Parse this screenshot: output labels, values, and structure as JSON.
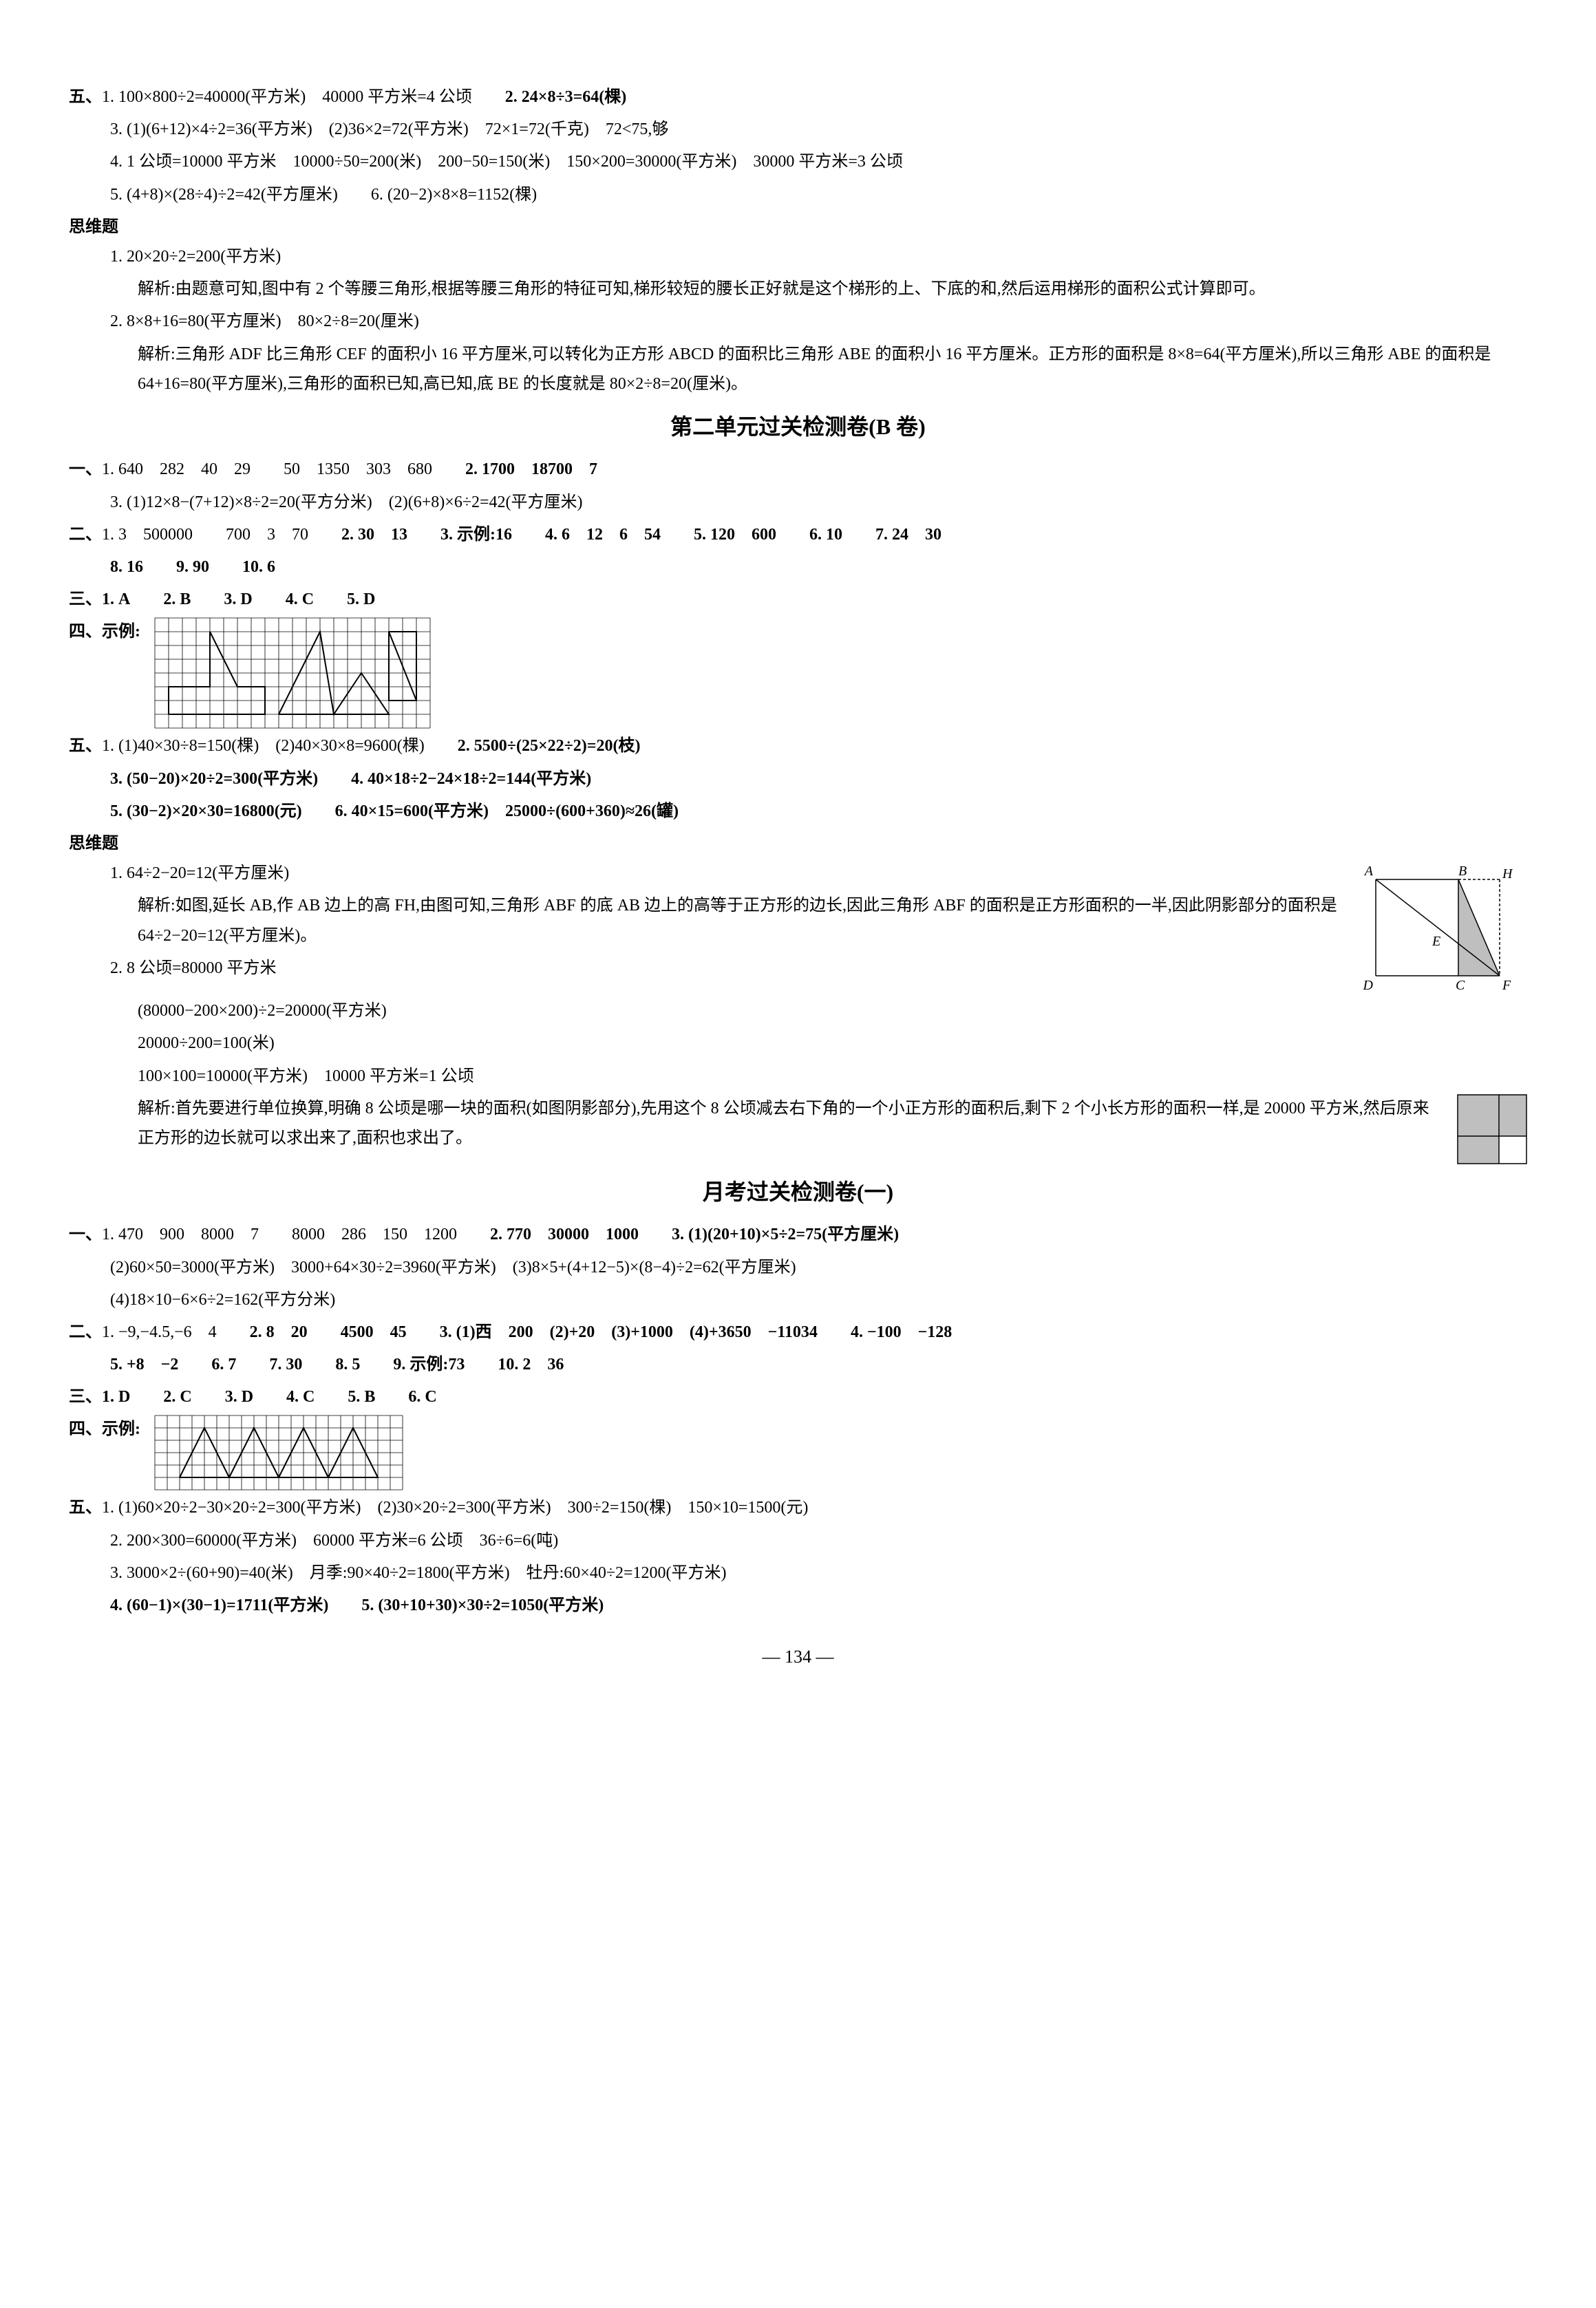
{
  "sectionA": {
    "label": "五、",
    "item1": "1. 100×800÷2=40000(平方米)　40000 平方米=4 公顷",
    "item2": "2. 24×8÷3=64(棵)",
    "item3": "3. (1)(6+12)×4÷2=36(平方米)　(2)36×2=72(平方米)　72×1=72(千克)　72<75,够",
    "item4": "4. 1 公顷=10000 平方米　10000÷50=200(米)　200−50=150(米)　150×200=30000(平方米)　30000 平方米=3 公顷",
    "item5": "5. (4+8)×(28÷4)÷2=42(平方厘米)",
    "item6": "6. (20−2)×8×8=1152(棵)"
  },
  "thinkA": {
    "label": "思维题",
    "t1": "1. 20×20÷2=200(平方米)",
    "t1_exp": "解析:由题意可知,图中有 2 个等腰三角形,根据等腰三角形的特征可知,梯形较短的腰长正好就是这个梯形的上、下底的和,然后运用梯形的面积公式计算即可。",
    "t2": "2. 8×8+16=80(平方厘米)　80×2÷8=20(厘米)",
    "t2_exp": "解析:三角形 ADF 比三角形 CEF 的面积小 16 平方厘米,可以转化为正方形 ABCD 的面积比三角形 ABE 的面积小 16 平方厘米。正方形的面积是 8×8=64(平方厘米),所以三角形 ABE 的面积是 64+16=80(平方厘米),三角形的面积已知,高已知,底 BE 的长度就是 80×2÷8=20(厘米)。"
  },
  "unit2": {
    "title": "第二单元过关检测卷(B 卷)",
    "s1": {
      "label": "一、",
      "l1a": "1. 640　282　40　29　　50　1350　303　680",
      "l1b": "2. 1700　18700　7",
      "l3": "3. (1)12×8−(7+12)×8÷2=20(平方分米)　(2)(6+8)×6÷2=42(平方厘米)"
    },
    "s2": {
      "label": "二、",
      "r1_1": "1. 3　500000　　700　3　70",
      "r1_2": "2. 30　13",
      "r1_3": "3. 示例:16",
      "r1_4": "4. 6　12　6　54",
      "r1_5": "5. 120　600",
      "r1_6": "6. 10",
      "r1_7": "7. 24　30",
      "r2_8": "8. 16",
      "r2_9": "9. 90",
      "r2_10": "10. 6"
    },
    "s3": {
      "label": "三、",
      "q1": "1. A",
      "q2": "2. B",
      "q3": "3. D",
      "q4": "4. C",
      "q5": "5. D"
    },
    "s4": {
      "label": "四、示例:"
    },
    "s5": {
      "label": "五、",
      "l1a": "1. (1)40×30÷8=150(棵)　(2)40×30×8=9600(棵)",
      "l1b": "2. 5500÷(25×22÷2)=20(枝)",
      "l3": "3. (50−20)×20÷2=300(平方米)",
      "l4": "4. 40×18÷2−24×18÷2=144(平方米)",
      "l5": "5. (30−2)×20×30=16800(元)",
      "l6": "6. 40×15=600(平方米)　25000÷(600+360)≈26(罐)"
    },
    "think": {
      "label": "思维题",
      "t1": "1. 64÷2−20=12(平方厘米)",
      "t1_exp": "解析:如图,延长 AB,作 AB 边上的高 FH,由图可知,三角形 ABF 的底 AB 边上的高等于正方形的边长,因此三角形 ABF 的面积是正方形面积的一半,因此阴影部分的面积是 64÷2−20=12(平方厘米)。",
      "t2": "2. 8 公顷=80000 平方米",
      "t2_l1": "(80000−200×200)÷2=20000(平方米)",
      "t2_l2": "20000÷200=100(米)",
      "t2_l3": "100×100=10000(平方米)　10000 平方米=1 公顷",
      "t2_exp": "解析:首先要进行单位换算,明确 8 公顷是哪一块的面积(如图阴影部分),先用这个 8 公顷减去右下角的一个小正方形的面积后,剩下 2 个小长方形的面积一样,是 20000 平方米,然后原来正方形的边长就可以求出来了,面积也求出了。"
    },
    "diagram": {
      "labels": {
        "A": "A",
        "B": "B",
        "H": "H",
        "D": "D",
        "C": "C",
        "F": "F",
        "E": "E"
      }
    }
  },
  "monthly": {
    "title": "月考过关检测卷(一)",
    "s1": {
      "label": "一、",
      "l1a": "1. 470　900　8000　7　　8000　286　150　1200",
      "l1b": "2. 770　30000　1000",
      "l1c": "3. (1)(20+10)×5÷2=75(平方厘米)",
      "l2": "(2)60×50=3000(平方米)　3000+64×30÷2=3960(平方米)　(3)8×5+(4+12−5)×(8−4)÷2=62(平方厘米)",
      "l3": "(4)18×10−6×6÷2=162(平方分米)"
    },
    "s2": {
      "label": "二、",
      "r1_1": "1. −9,−4.5,−6　4",
      "r1_2": "2. 8　20　　4500　45",
      "r1_3": "3. (1)西　200　(2)+20　(3)+1000　(4)+3650　−11034",
      "r1_4": "4. −100　−128",
      "r2_5": "5. +8　−2",
      "r2_6": "6. 7",
      "r2_7": "7. 30",
      "r2_8": "8. 5",
      "r2_9": "9. 示例:73",
      "r2_10": "10. 2　36"
    },
    "s3": {
      "label": "三、",
      "q1": "1. D",
      "q2": "2. C",
      "q3": "3. D",
      "q4": "4. C",
      "q5": "5. B",
      "q6": "6. C"
    },
    "s4": {
      "label": "四、示例:"
    },
    "s5": {
      "label": "五、",
      "l1": "1. (1)60×20÷2−30×20÷2=300(平方米)　(2)30×20÷2=300(平方米)　300÷2=150(棵)　150×10=1500(元)",
      "l2": "2. 200×300=60000(平方米)　60000 平方米=6 公顷　36÷6=6(吨)",
      "l3": "3. 3000×2÷(60+90)=40(米)　月季:90×40÷2=1800(平方米)　牡丹:60×40÷2=1200(平方米)",
      "l4": "4. (60−1)×(30−1)=1711(平方米)",
      "l5": "5. (30+10+30)×30÷2=1050(平方米)"
    }
  },
  "pageNum": "134",
  "grid1": {
    "cols": 20,
    "rows": 8,
    "cell": 20,
    "polylines": [
      [
        [
          1,
          7
        ],
        [
          1,
          5
        ],
        [
          4,
          5
        ],
        [
          4,
          1
        ],
        [
          6,
          5
        ],
        [
          8,
          5
        ],
        [
          8,
          7
        ],
        [
          1,
          7
        ]
      ],
      [
        [
          9,
          7
        ],
        [
          12,
          1
        ],
        [
          13,
          7
        ],
        [
          15,
          4
        ],
        [
          17,
          7
        ],
        [
          9,
          7
        ]
      ],
      [
        [
          17,
          1
        ],
        [
          19,
          1
        ],
        [
          19,
          6
        ],
        [
          17,
          6
        ],
        [
          17,
          1
        ]
      ],
      [
        [
          19,
          6
        ],
        [
          17,
          1
        ]
      ]
    ]
  },
  "grid2": {
    "cols": 20,
    "rows": 6,
    "cell": 18,
    "polylines": [
      [
        [
          2,
          5
        ],
        [
          4,
          1
        ],
        [
          6,
          5
        ],
        [
          2,
          5
        ]
      ],
      [
        [
          6,
          5
        ],
        [
          8,
          1
        ],
        [
          10,
          5
        ],
        [
          6,
          5
        ]
      ],
      [
        [
          10,
          5
        ],
        [
          12,
          1
        ],
        [
          14,
          5
        ],
        [
          10,
          5
        ]
      ],
      [
        [
          14,
          5
        ],
        [
          16,
          1
        ],
        [
          18,
          5
        ],
        [
          14,
          5
        ]
      ]
    ]
  },
  "squareDiagram": {
    "size": 100
  }
}
